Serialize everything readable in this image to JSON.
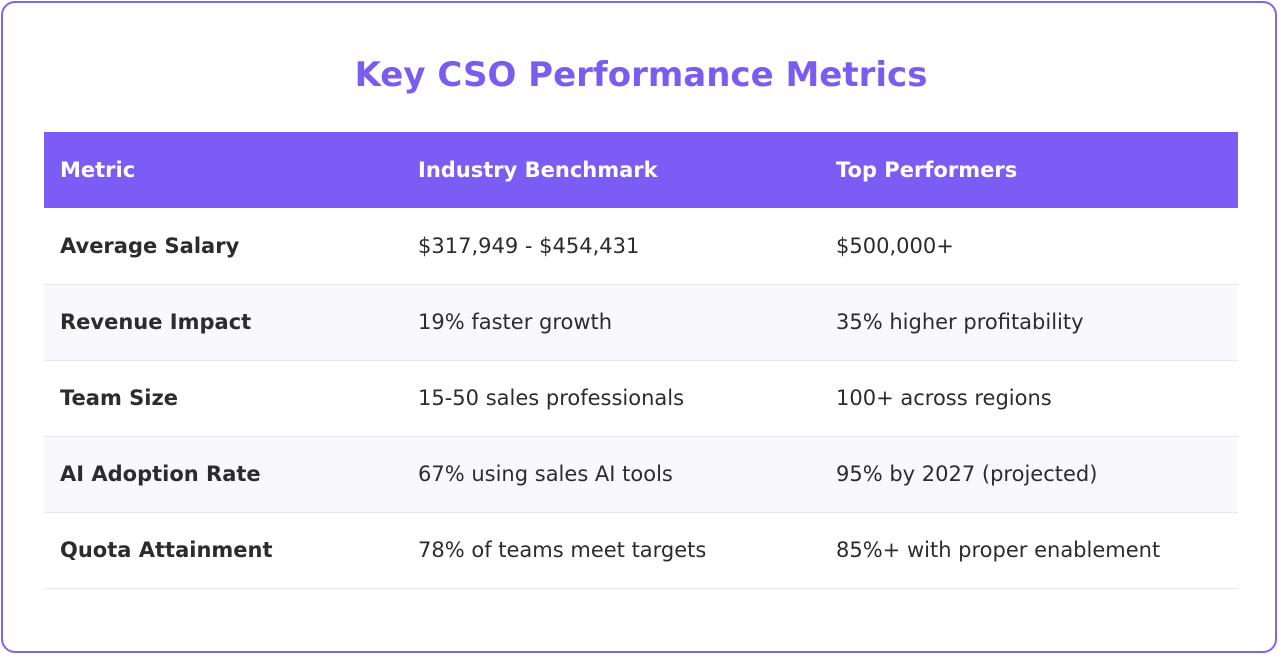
{
  "title": "Key CSO Performance Metrics",
  "table": {
    "headers": [
      "Metric",
      "Industry Benchmark",
      "Top Performers"
    ],
    "rows": [
      [
        "Average Salary",
        "$317,949 - $454,431",
        "$500,000+"
      ],
      [
        "Revenue Impact",
        "19% faster growth",
        "35% higher profitability"
      ],
      [
        "Team Size",
        "15-50 sales professionals",
        "100+ across regions"
      ],
      [
        "AI Adoption Rate",
        "67% using sales AI tools",
        "95% by 2027 (projected)"
      ],
      [
        "Quota Attainment",
        "78% of teams meet targets",
        "85%+ with proper enablement"
      ]
    ]
  },
  "colors": {
    "accent": "#7b5cf5",
    "border": "#7b68ee",
    "row_alt": "#f9f9fd"
  }
}
